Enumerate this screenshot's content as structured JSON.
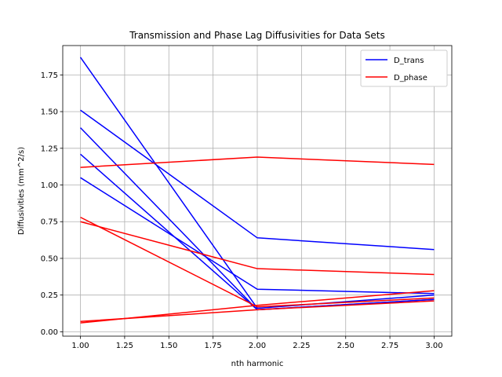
{
  "chart_data": {
    "type": "line",
    "title": "Transmission and Phase Lag Diffusivities for Data Sets",
    "xlabel": "nth harmonic",
    "ylabel": "Diffusivities (mm^2/s)",
    "xlim": [
      0.9,
      3.1
    ],
    "ylim": [
      -0.03,
      1.95
    ],
    "x": [
      1,
      2,
      3
    ],
    "xticks": [
      "1.00",
      "1.25",
      "1.50",
      "1.75",
      "2.00",
      "2.25",
      "2.50",
      "2.75",
      "3.00"
    ],
    "yticks": [
      "0.00",
      "0.25",
      "0.50",
      "0.75",
      "1.00",
      "1.25",
      "1.50",
      "1.75"
    ],
    "grid": true,
    "legend": {
      "placement": "top-right",
      "entries": [
        "D_trans",
        "D_phase"
      ]
    },
    "colors": {
      "D_trans": "#0000ff",
      "D_phase": "#ff0000"
    },
    "series": [
      {
        "name": "D_trans",
        "values": [
          1.87,
          0.16,
          0.25
        ]
      },
      {
        "name": "D_trans",
        "values": [
          1.51,
          0.64,
          0.56
        ]
      },
      {
        "name": "D_trans",
        "values": [
          1.39,
          0.15,
          0.22
        ]
      },
      {
        "name": "D_trans",
        "values": [
          1.21,
          0.15,
          0.22
        ]
      },
      {
        "name": "D_trans",
        "values": [
          1.05,
          0.29,
          0.26
        ]
      },
      {
        "name": "D_phase",
        "values": [
          1.12,
          1.19,
          1.14
        ]
      },
      {
        "name": "D_phase",
        "values": [
          0.78,
          0.17,
          0.23
        ]
      },
      {
        "name": "D_phase",
        "values": [
          0.75,
          0.43,
          0.39
        ]
      },
      {
        "name": "D_phase",
        "values": [
          0.06,
          0.18,
          0.28
        ]
      },
      {
        "name": "D_phase",
        "values": [
          0.07,
          0.15,
          0.21
        ]
      }
    ]
  }
}
